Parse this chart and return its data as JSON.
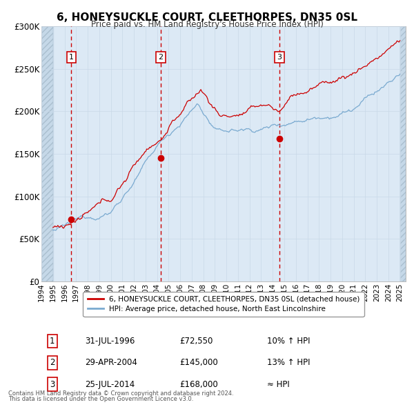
{
  "title": "6, HONEYSUCKLE COURT, CLEETHORPES, DN35 0SL",
  "subtitle": "Price paid vs. HM Land Registry's House Price Index (HPI)",
  "ylim": [
    0,
    300000
  ],
  "yticks": [
    0,
    50000,
    100000,
    150000,
    200000,
    250000,
    300000
  ],
  "ytick_labels": [
    "£0",
    "£50K",
    "£100K",
    "£150K",
    "£200K",
    "£250K",
    "£300K"
  ],
  "xmin": 1994.0,
  "xmax": 2025.5,
  "hpi_color": "#7aaad0",
  "price_color": "#cc0000",
  "sale_marker_color": "#cc0000",
  "vline_color": "#cc0000",
  "grid_color": "#c8d8e8",
  "bg_color": "#dce9f5",
  "hatch_bg_color": "#c5d8e8",
  "legend_entries": [
    "6, HONEYSUCKLE COURT, CLEETHORPES, DN35 0SL (detached house)",
    "HPI: Average price, detached house, North East Lincolnshire"
  ],
  "sales": [
    {
      "date_label": "31-JUL-1996",
      "date_x": 1996.58,
      "price": 72550,
      "label": "1",
      "note": "10% ↑ HPI"
    },
    {
      "date_label": "29-APR-2004",
      "date_x": 2004.33,
      "price": 145000,
      "label": "2",
      "note": "13% ↑ HPI"
    },
    {
      "date_label": "25-JUL-2014",
      "date_x": 2014.58,
      "price": 168000,
      "label": "3",
      "note": "≈ HPI"
    }
  ],
  "footer1": "Contains HM Land Registry data © Crown copyright and database right 2024.",
  "footer2": "This data is licensed under the Open Government Licence v3.0.",
  "data_start_x": 1995.0,
  "data_end_x": 2025.0,
  "hatch_right_start": 2025.0
}
